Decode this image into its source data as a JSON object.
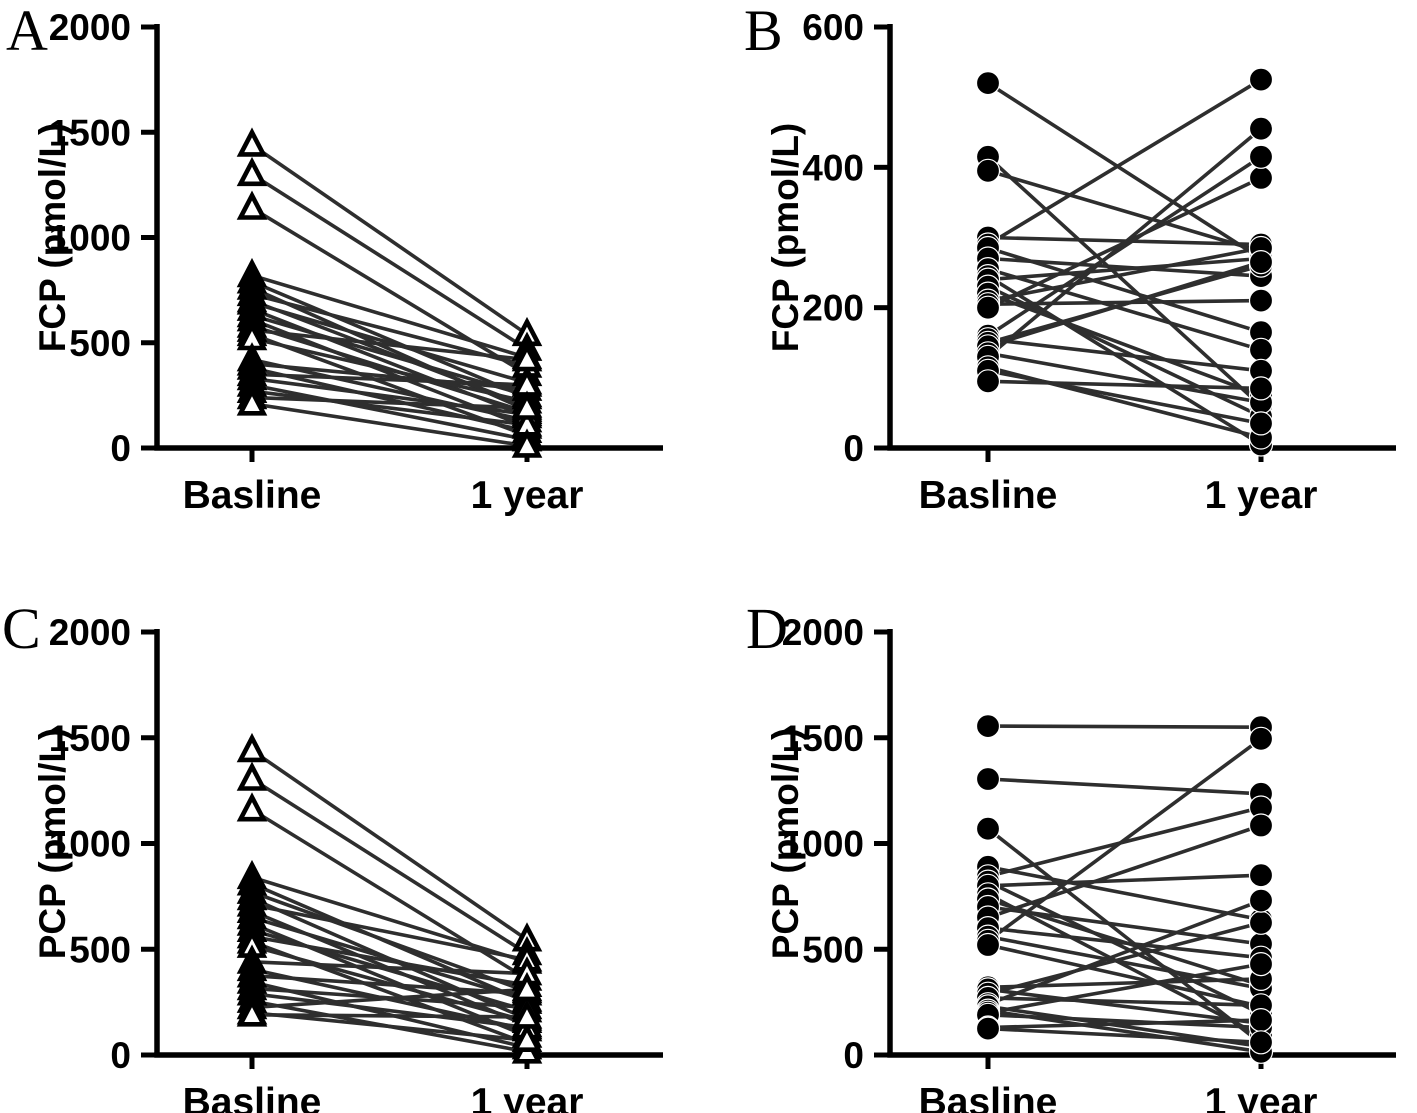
{
  "figure": {
    "background": "#ffffff",
    "ink_color": "#000000",
    "connector_color": "#2e2e2e",
    "panel_letters": [
      "A",
      "B",
      "C",
      "D"
    ]
  },
  "chart_data": [
    {
      "type": "line",
      "subtype": "paired-before-after",
      "panel": "A",
      "ylabel": "FCP (pmol/L)",
      "categories": [
        "Basline",
        "1 year"
      ],
      "ylim": [
        0,
        2000
      ],
      "yticks": [
        0,
        500,
        1000,
        1500,
        2000
      ],
      "marker": "open-triangle",
      "grid": false,
      "legend": "none",
      "series_pairs": [
        [
          1440,
          540
        ],
        [
          1300,
          470
        ],
        [
          1140,
          350
        ],
        [
          820,
          430
        ],
        [
          790,
          240
        ],
        [
          760,
          180
        ],
        [
          730,
          390
        ],
        [
          700,
          200
        ],
        [
          690,
          310
        ],
        [
          660,
          150
        ],
        [
          630,
          250
        ],
        [
          610,
          100
        ],
        [
          580,
          170
        ],
        [
          560,
          420
        ],
        [
          540,
          60
        ],
        [
          520,
          220
        ],
        [
          420,
          130
        ],
        [
          400,
          280
        ],
        [
          380,
          80
        ],
        [
          350,
          300
        ],
        [
          330,
          160
        ],
        [
          300,
          40
        ],
        [
          270,
          110
        ],
        [
          240,
          190
        ],
        [
          210,
          10
        ]
      ]
    },
    {
      "type": "line",
      "subtype": "paired-before-after",
      "panel": "B",
      "ylabel": "FCP (pmol/L)",
      "categories": [
        "Basline",
        "1 year"
      ],
      "ylim": [
        0,
        600
      ],
      "yticks": [
        0,
        200,
        400,
        600
      ],
      "marker": "filled-circle",
      "grid": false,
      "legend": "none",
      "series_pairs": [
        [
          520,
          270
        ],
        [
          415,
          60
        ],
        [
          395,
          280
        ],
        [
          300,
          290
        ],
        [
          290,
          525
        ],
        [
          285,
          165
        ],
        [
          270,
          245
        ],
        [
          255,
          140
        ],
        [
          245,
          5
        ],
        [
          240,
          270
        ],
        [
          230,
          45
        ],
        [
          220,
          75
        ],
        [
          210,
          285
        ],
        [
          205,
          210
        ],
        [
          200,
          385
        ],
        [
          160,
          415
        ],
        [
          155,
          110
        ],
        [
          150,
          260
        ],
        [
          145,
          265
        ],
        [
          135,
          65
        ],
        [
          130,
          455
        ],
        [
          115,
          15
        ],
        [
          110,
          35
        ],
        [
          95,
          85
        ]
      ]
    },
    {
      "type": "line",
      "subtype": "paired-before-after",
      "panel": "C",
      "ylabel": "PCP (pmol/L)",
      "categories": [
        "Basline",
        "1 year"
      ],
      "ylim": [
        0,
        2000
      ],
      "yticks": [
        0,
        500,
        1000,
        1500,
        2000
      ],
      "marker": "open-triangle",
      "grid": false,
      "legend": "none",
      "series_pairs": [
        [
          1440,
          545
        ],
        [
          1305,
          480
        ],
        [
          1160,
          360
        ],
        [
          840,
          440
        ],
        [
          810,
          250
        ],
        [
          770,
          300
        ],
        [
          740,
          170
        ],
        [
          710,
          450
        ],
        [
          680,
          140
        ],
        [
          650,
          260
        ],
        [
          620,
          90
        ],
        [
          590,
          210
        ],
        [
          560,
          330
        ],
        [
          535,
          55
        ],
        [
          515,
          160
        ],
        [
          440,
          385
        ],
        [
          405,
          120
        ],
        [
          375,
          290
        ],
        [
          345,
          35
        ],
        [
          315,
          225
        ],
        [
          290,
          130
        ],
        [
          255,
          15
        ],
        [
          225,
          310
        ],
        [
          200,
          70
        ],
        [
          190,
          180
        ]
      ]
    },
    {
      "type": "line",
      "subtype": "paired-before-after",
      "panel": "D",
      "ylabel": "PCP (pmol/L)",
      "categories": [
        "Basline",
        "1 year"
      ],
      "ylim": [
        0,
        2000
      ],
      "yticks": [
        0,
        500,
        1000,
        1500,
        2000
      ],
      "marker": "filled-circle",
      "grid": false,
      "legend": "none",
      "series_pairs": [
        [
          1555,
          1550
        ],
        [
          1305,
          1235
        ],
        [
          1070,
          55
        ],
        [
          890,
          640
        ],
        [
          845,
          1170
        ],
        [
          820,
          195
        ],
        [
          800,
          850
        ],
        [
          760,
          90
        ],
        [
          735,
          330
        ],
        [
          700,
          525
        ],
        [
          650,
          1085
        ],
        [
          600,
          460
        ],
        [
          560,
          315
        ],
        [
          540,
          1495
        ],
        [
          520,
          230
        ],
        [
          320,
          360
        ],
        [
          310,
          150
        ],
        [
          290,
          625
        ],
        [
          270,
          235
        ],
        [
          240,
          730
        ],
        [
          230,
          40
        ],
        [
          210,
          15
        ],
        [
          200,
          430
        ],
        [
          190,
          130
        ],
        [
          130,
          165
        ],
        [
          125,
          60
        ]
      ]
    }
  ]
}
